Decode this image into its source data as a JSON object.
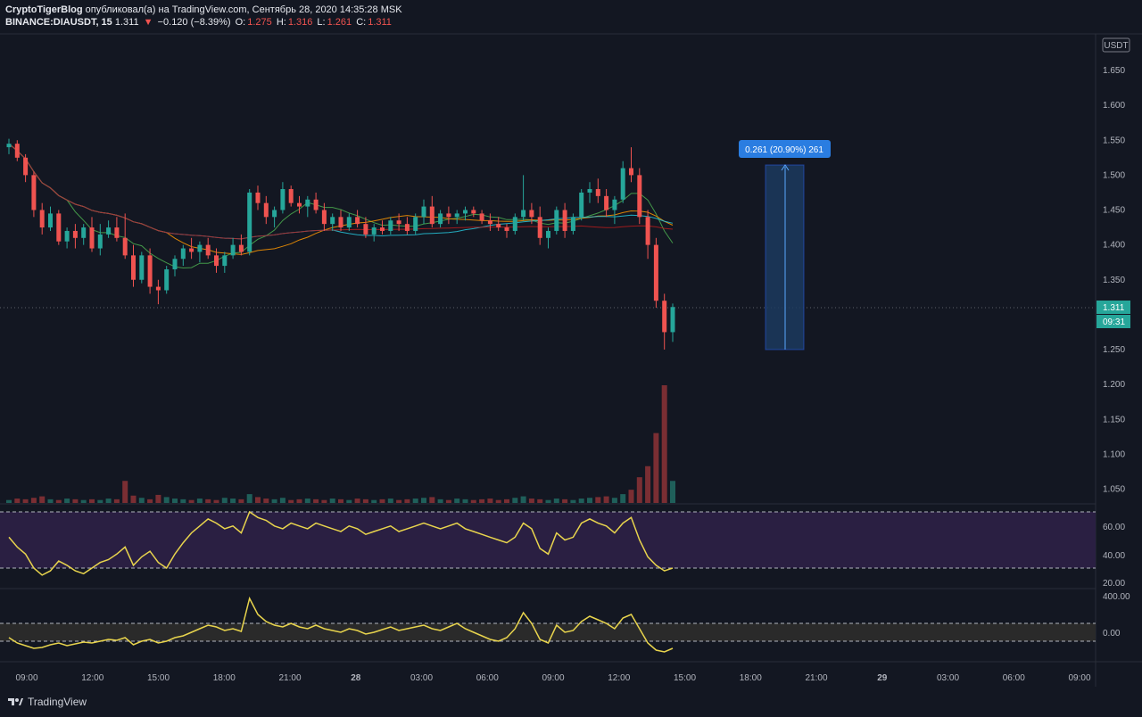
{
  "header": {
    "author": "CryptoTigerBlog",
    "published_text": "опубликовал(а) на TradingView.com, Сентябрь 28, 2020 14:35:28 MSK",
    "symbol": "BINANCE:DIAUSDT, 15",
    "last": "1.311",
    "change": "−0.120 (−8.39%)",
    "o_label": "O:",
    "o_value": "1.275",
    "h_label": "H:",
    "h_value": "1.316",
    "l_label": "L:",
    "l_value": "1.261",
    "c_label": "C:",
    "c_value": "1.311"
  },
  "price_axis": {
    "currency": "USDT",
    "ticks": [
      "1.650",
      "1.600",
      "1.550",
      "1.500",
      "1.450",
      "1.400",
      "1.350",
      "1.250",
      "1.200",
      "1.150",
      "1.100",
      "1.050"
    ],
    "last_price_label": "1.311",
    "countdown_label": "09:31"
  },
  "rsi_axis": {
    "ticks": [
      "60.00",
      "40.00",
      "20.00"
    ]
  },
  "cci_axis": {
    "ticks": [
      "400.00",
      "0.00"
    ]
  },
  "time_axis": {
    "ticks": [
      "09:00",
      "12:00",
      "15:00",
      "18:00",
      "21:00",
      "28",
      "03:00",
      "06:00",
      "09:00",
      "12:00",
      "15:00",
      "18:00",
      "21:00",
      "29",
      "03:00",
      "06:00",
      "09:00"
    ]
  },
  "measure": {
    "label": "0.261 (20.90%) 261"
  },
  "footer": {
    "brand": "TradingView"
  },
  "colors": {
    "up": "#26a69a",
    "down": "#ef5350",
    "vol_up": "#1f5f5a",
    "vol_down": "#7a2e33",
    "rsi": "#e8d44d",
    "bg": "#131722",
    "measure": "#2962ff"
  },
  "chart_data": {
    "type": "candlestick",
    "symbol": "DIAUSDT",
    "interval": "15",
    "ylim": [
      1.03,
      1.68
    ],
    "candles_approx": [
      [
        1.54,
        1.552,
        1.53,
        1.545
      ],
      [
        1.545,
        1.55,
        1.52,
        1.525
      ],
      [
        1.525,
        1.53,
        1.49,
        1.5
      ],
      [
        1.5,
        1.505,
        1.44,
        1.45
      ],
      [
        1.45,
        1.46,
        1.415,
        1.425
      ],
      [
        1.425,
        1.455,
        1.42,
        1.445
      ],
      [
        1.445,
        1.45,
        1.4,
        1.405
      ],
      [
        1.405,
        1.425,
        1.395,
        1.42
      ],
      [
        1.42,
        1.43,
        1.395,
        1.41
      ],
      [
        1.41,
        1.43,
        1.4,
        1.425
      ],
      [
        1.425,
        1.44,
        1.39,
        1.395
      ],
      [
        1.395,
        1.43,
        1.385,
        1.415
      ],
      [
        1.415,
        1.435,
        1.41,
        1.425
      ],
      [
        1.425,
        1.44,
        1.405,
        1.41
      ],
      [
        1.41,
        1.445,
        1.38,
        1.385
      ],
      [
        1.385,
        1.4,
        1.34,
        1.35
      ],
      [
        1.35,
        1.39,
        1.345,
        1.385
      ],
      [
        1.385,
        1.395,
        1.33,
        1.34
      ],
      [
        1.34,
        1.35,
        1.315,
        1.335
      ],
      [
        1.335,
        1.37,
        1.33,
        1.365
      ],
      [
        1.365,
        1.385,
        1.355,
        1.38
      ],
      [
        1.38,
        1.4,
        1.37,
        1.395
      ],
      [
        1.395,
        1.41,
        1.38,
        1.39
      ],
      [
        1.39,
        1.405,
        1.375,
        1.4
      ],
      [
        1.4,
        1.41,
        1.38,
        1.385
      ],
      [
        1.385,
        1.395,
        1.36,
        1.37
      ],
      [
        1.37,
        1.39,
        1.36,
        1.385
      ],
      [
        1.385,
        1.41,
        1.38,
        1.4
      ],
      [
        1.4,
        1.415,
        1.385,
        1.39
      ],
      [
        1.39,
        1.48,
        1.385,
        1.475
      ],
      [
        1.475,
        1.485,
        1.45,
        1.46
      ],
      [
        1.46,
        1.47,
        1.43,
        1.44
      ],
      [
        1.44,
        1.455,
        1.425,
        1.45
      ],
      [
        1.45,
        1.49,
        1.445,
        1.48
      ],
      [
        1.48,
        1.485,
        1.455,
        1.46
      ],
      [
        1.46,
        1.47,
        1.445,
        1.455
      ],
      [
        1.455,
        1.47,
        1.44,
        1.465
      ],
      [
        1.465,
        1.475,
        1.445,
        1.45
      ],
      [
        1.45,
        1.46,
        1.42,
        1.43
      ],
      [
        1.43,
        1.445,
        1.42,
        1.44
      ],
      [
        1.44,
        1.45,
        1.42,
        1.425
      ],
      [
        1.425,
        1.445,
        1.42,
        1.44
      ],
      [
        1.44,
        1.45,
        1.425,
        1.43
      ],
      [
        1.43,
        1.44,
        1.41,
        1.415
      ],
      [
        1.415,
        1.43,
        1.405,
        1.425
      ],
      [
        1.425,
        1.435,
        1.415,
        1.42
      ],
      [
        1.42,
        1.44,
        1.415,
        1.435
      ],
      [
        1.435,
        1.445,
        1.42,
        1.43
      ],
      [
        1.43,
        1.44,
        1.415,
        1.42
      ],
      [
        1.42,
        1.445,
        1.415,
        1.44
      ],
      [
        1.44,
        1.465,
        1.43,
        1.455
      ],
      [
        1.455,
        1.47,
        1.425,
        1.43
      ],
      [
        1.43,
        1.45,
        1.425,
        1.445
      ],
      [
        1.445,
        1.455,
        1.43,
        1.44
      ],
      [
        1.44,
        1.45,
        1.43,
        1.445
      ],
      [
        1.445,
        1.455,
        1.435,
        1.45
      ],
      [
        1.45,
        1.455,
        1.44,
        1.445
      ],
      [
        1.445,
        1.45,
        1.43,
        1.435
      ],
      [
        1.435,
        1.445,
        1.42,
        1.43
      ],
      [
        1.43,
        1.44,
        1.42,
        1.425
      ],
      [
        1.425,
        1.43,
        1.41,
        1.42
      ],
      [
        1.42,
        1.445,
        1.415,
        1.44
      ],
      [
        1.44,
        1.5,
        1.435,
        1.45
      ],
      [
        1.45,
        1.46,
        1.43,
        1.44
      ],
      [
        1.44,
        1.455,
        1.4,
        1.41
      ],
      [
        1.41,
        1.425,
        1.395,
        1.42
      ],
      [
        1.42,
        1.455,
        1.415,
        1.45
      ],
      [
        1.45,
        1.46,
        1.41,
        1.42
      ],
      [
        1.42,
        1.445,
        1.415,
        1.44
      ],
      [
        1.44,
        1.48,
        1.435,
        1.475
      ],
      [
        1.475,
        1.49,
        1.46,
        1.48
      ],
      [
        1.48,
        1.495,
        1.46,
        1.47
      ],
      [
        1.47,
        1.48,
        1.44,
        1.45
      ],
      [
        1.45,
        1.47,
        1.43,
        1.465
      ],
      [
        1.465,
        1.52,
        1.46,
        1.51
      ],
      [
        1.51,
        1.54,
        1.49,
        1.5
      ],
      [
        1.5,
        1.51,
        1.43,
        1.44
      ],
      [
        1.44,
        1.45,
        1.38,
        1.4
      ],
      [
        1.4,
        1.41,
        1.31,
        1.32
      ],
      [
        1.32,
        1.33,
        1.25,
        1.275
      ],
      [
        1.275,
        1.316,
        1.261,
        1.311
      ]
    ],
    "volume_approx": [
      4,
      6,
      5,
      7,
      9,
      5,
      4,
      6,
      5,
      4,
      5,
      4,
      6,
      5,
      30,
      10,
      7,
      5,
      11,
      8,
      6,
      5,
      4,
      6,
      5,
      4,
      7,
      6,
      5,
      12,
      8,
      6,
      5,
      7,
      4,
      5,
      6,
      5,
      4,
      6,
      5,
      4,
      6,
      5,
      4,
      5,
      6,
      4,
      5,
      6,
      7,
      8,
      5,
      4,
      6,
      5,
      4,
      5,
      6,
      4,
      5,
      7,
      9,
      6,
      5,
      4,
      6,
      5,
      4,
      6,
      7,
      8,
      9,
      7,
      12,
      18,
      35,
      50,
      95,
      160,
      30
    ],
    "measure": {
      "label": "0.261 (20.90%) 261",
      "from": 1.25,
      "to": 1.511
    },
    "rsi_levels": [
      70,
      30
    ],
    "rsi_approx": [
      52,
      45,
      40,
      30,
      25,
      28,
      35,
      32,
      28,
      26,
      30,
      34,
      36,
      40,
      45,
      32,
      38,
      42,
      34,
      30,
      40,
      48,
      55,
      60,
      65,
      62,
      58,
      60,
      55,
      70,
      66,
      64,
      60,
      58,
      62,
      60,
      58,
      62,
      60,
      58,
      56,
      60,
      58,
      54,
      56,
      58,
      60,
      56,
      58,
      60,
      62,
      60,
      58,
      60,
      62,
      58,
      56,
      54,
      52,
      50,
      48,
      52,
      62,
      58,
      44,
      40,
      55,
      50,
      52,
      62,
      65,
      62,
      60,
      55,
      62,
      66,
      50,
      38,
      32,
      28,
      30
    ],
    "cci_levels": [
      100,
      -100
    ],
    "cci_approx": [
      -60,
      -120,
      -150,
      -180,
      -170,
      -140,
      -120,
      -150,
      -130,
      -110,
      -120,
      -100,
      -80,
      -90,
      -60,
      -140,
      -100,
      -80,
      -120,
      -100,
      -60,
      -40,
      0,
      40,
      80,
      60,
      20,
      40,
      10,
      380,
      200,
      120,
      80,
      60,
      100,
      60,
      40,
      80,
      40,
      20,
      0,
      40,
      20,
      -20,
      0,
      30,
      60,
      20,
      40,
      60,
      80,
      40,
      20,
      60,
      100,
      40,
      0,
      -40,
      -80,
      -100,
      -60,
      40,
      220,
      100,
      -80,
      -120,
      80,
      0,
      20,
      120,
      180,
      140,
      100,
      40,
      160,
      200,
      40,
      -120,
      -200,
      -220,
      -180
    ]
  }
}
